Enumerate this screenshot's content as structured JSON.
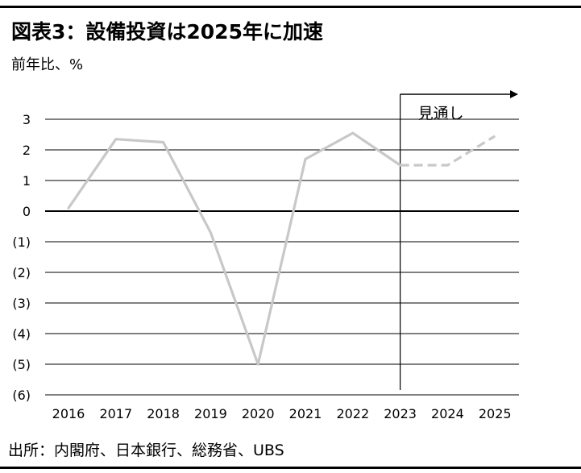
{
  "title": "図表3：設備投資は2025年に加速",
  "unit_label": "前年比、%",
  "source": "出所：内閣府、日本銀行、総務省、UBS",
  "forecast_label": "見通し",
  "line_color": "#c8c8c8",
  "chart_data": {
    "type": "line",
    "x": [
      "2016",
      "2017",
      "2018",
      "2019",
      "2020",
      "2021",
      "2022",
      "2023",
      "2024",
      "2025"
    ],
    "y_tick_labels": [
      "3",
      "2",
      "1",
      "0",
      "(1)",
      "(2)",
      "(3)",
      "(4)",
      "(5)",
      "(6)"
    ],
    "y_tick_values": [
      3,
      2,
      1,
      0,
      -1,
      -2,
      -3,
      -4,
      -5,
      -6
    ],
    "ylim": [
      -6,
      3
    ],
    "grid": true,
    "series": [
      {
        "style": "solid",
        "x": [
          "2016",
          "2017",
          "2018",
          "2019",
          "2020",
          "2021",
          "2022",
          "2023"
        ],
        "values": [
          0.1,
          2.35,
          2.25,
          -0.7,
          -5.0,
          1.7,
          2.55,
          1.5
        ]
      },
      {
        "style": "dashed",
        "x": [
          "2023",
          "2024",
          "2025"
        ],
        "values": [
          1.5,
          1.5,
          2.45
        ]
      }
    ],
    "forecast_start": "2023",
    "forecast_label": "見通し"
  }
}
